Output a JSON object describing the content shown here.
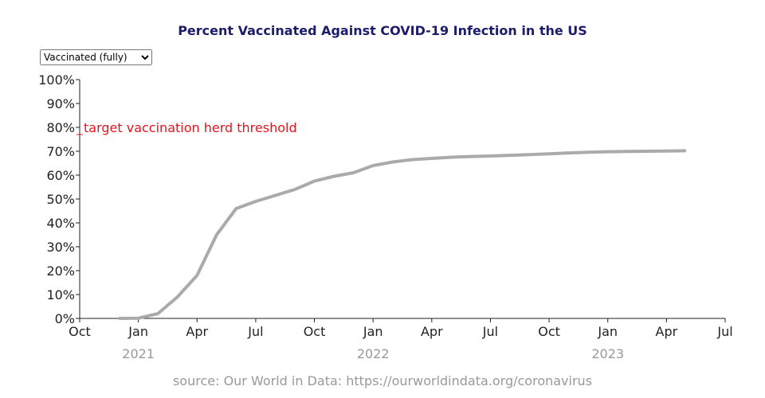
{
  "chart_data": {
    "type": "line",
    "title": "Percent Vaccinated Against COVID-19 Infection in the US",
    "dropdown": {
      "options": [
        "Vaccinated (fully)"
      ]
    },
    "source": "source: Our World in Data: https://ourworldindata.org/coronavirus",
    "x": [
      "2020-12",
      "2021-01",
      "2021-02",
      "2021-03",
      "2021-04",
      "2021-05",
      "2021-06",
      "2021-07",
      "2021-08",
      "2021-09",
      "2021-10",
      "2021-11",
      "2021-12",
      "2022-01",
      "2022-02",
      "2022-03",
      "2022-04",
      "2022-05",
      "2022-06",
      "2022-07",
      "2022-08",
      "2022-09",
      "2022-10",
      "2022-11",
      "2022-12",
      "2023-01",
      "2023-02",
      "2023-03",
      "2023-04",
      "2023-05"
    ],
    "series": [
      {
        "name": "Vaccinated (fully)",
        "color": "#aaaaaa",
        "values": [
          0,
          0.1,
          2,
          9,
          18,
          35,
          46,
          49,
          51.5,
          54,
          57.5,
          59.5,
          61,
          64,
          65.5,
          66.5,
          67,
          67.5,
          67.8,
          68,
          68.3,
          68.6,
          68.9,
          69.3,
          69.6,
          69.8,
          69.9,
          70,
          70.1,
          70.2
        ]
      }
    ],
    "xlim": [
      "2020-10",
      "2023-07"
    ],
    "xticks": [
      {
        "value": "2020-10",
        "label": "Oct"
      },
      {
        "value": "2021-01",
        "label": "Jan"
      },
      {
        "value": "2021-04",
        "label": "Apr"
      },
      {
        "value": "2021-07",
        "label": "Jul"
      },
      {
        "value": "2021-10",
        "label": "Oct"
      },
      {
        "value": "2022-01",
        "label": "Jan"
      },
      {
        "value": "2022-04",
        "label": "Apr"
      },
      {
        "value": "2022-07",
        "label": "Jul"
      },
      {
        "value": "2022-10",
        "label": "Oct"
      },
      {
        "value": "2023-01",
        "label": "Jan"
      },
      {
        "value": "2023-04",
        "label": "Apr"
      },
      {
        "value": "2023-07",
        "label": "Jul"
      }
    ],
    "xyears": [
      {
        "value": "2021-01",
        "label": "2021"
      },
      {
        "value": "2022-01",
        "label": "2022"
      },
      {
        "value": "2023-01",
        "label": "2023"
      }
    ],
    "ylim": [
      0,
      100
    ],
    "yticks": [
      {
        "value": 0,
        "label": "0%"
      },
      {
        "value": 10,
        "label": "10%"
      },
      {
        "value": 20,
        "label": "20%"
      },
      {
        "value": 30,
        "label": "30%"
      },
      {
        "value": 40,
        "label": "40%"
      },
      {
        "value": 50,
        "label": "50%"
      },
      {
        "value": 60,
        "label": "60%"
      },
      {
        "value": 70,
        "label": "70%"
      },
      {
        "value": 80,
        "label": "80%"
      },
      {
        "value": 90,
        "label": "90%"
      },
      {
        "value": 100,
        "label": "100%"
      }
    ],
    "annotation": {
      "text": "target vaccination herd threshold",
      "y": 77,
      "color": "#e8141c"
    }
  }
}
